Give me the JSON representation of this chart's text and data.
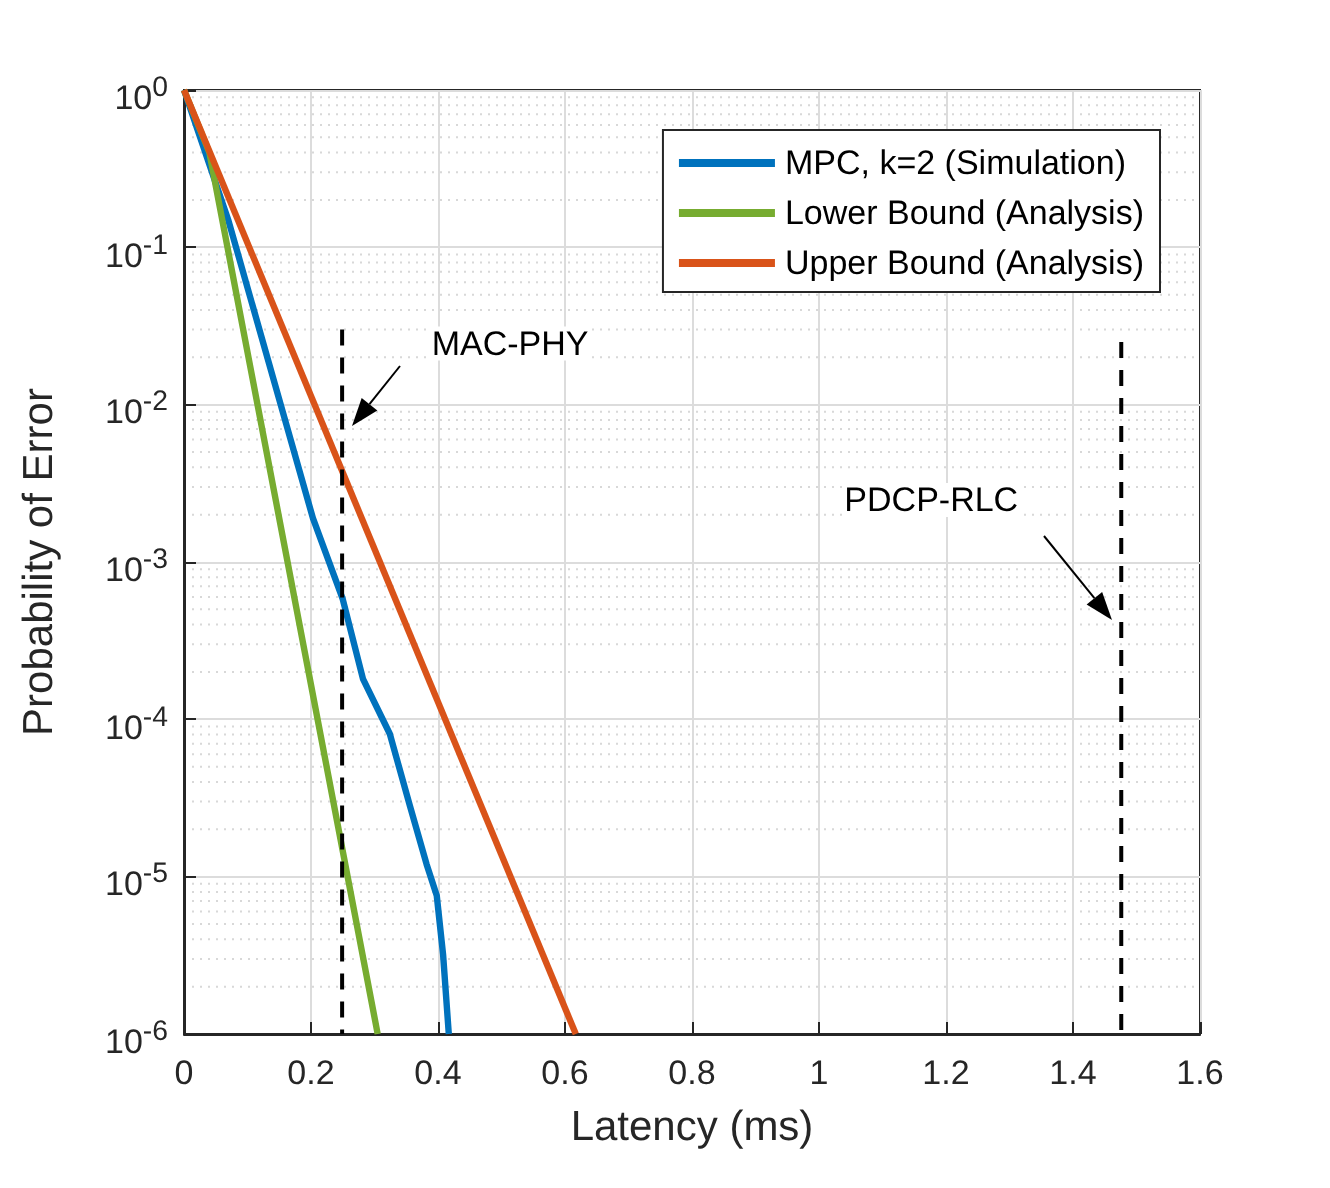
{
  "chart_data": {
    "type": "line",
    "xlabel": "Latency (ms)",
    "ylabel": "Probability of Error",
    "log": "y",
    "grid": true,
    "legend": "top right",
    "line_style": "solid",
    "marker": "none",
    "xlim": [
      0,
      1.6
    ],
    "xticks": [
      0,
      0.2,
      0.4,
      0.6,
      0.8,
      1,
      1.2,
      1.4,
      1.6
    ],
    "ylim": [
      1e-06,
      1
    ],
    "yticks": [
      {
        "value": 1e-06,
        "label": "10$^{-6}$"
      },
      {
        "value": 1e-05,
        "label": "10$^{-5}$"
      },
      {
        "value": 0.0001,
        "label": "10$^{-4}$"
      },
      {
        "value": 0.001,
        "label": "10$^{-3}$"
      },
      {
        "value": 0.01,
        "label": "10$^{-2}$"
      },
      {
        "value": 0.1,
        "label": "10$^{-1}$"
      },
      {
        "value": 1,
        "label": "10$^{0}$"
      }
    ],
    "series": [
      {
        "name": "MPC, k=2 (Simulation)",
        "color": "#0072bd",
        "x": [
          0,
          0.07,
          0.203,
          0.25,
          0.282,
          0.324,
          0.356,
          0.382,
          0.398,
          0.408,
          0.417
        ],
        "values": [
          1,
          0.148,
          0.0019,
          0.00058,
          0.00018,
          8.1e-05,
          2.8e-05,
          1.2e-05,
          7.6e-06,
          3.2e-06,
          1e-06
        ]
      },
      {
        "name": "Lower Bound (Analysis)",
        "color": "#77ac30",
        "x": [
          0,
          0.04,
          0.305
        ],
        "values": [
          1,
          0.4,
          1e-06
        ]
      },
      {
        "name": "Upper Bound (Analysis)",
        "color": "#d95319",
        "x": [
          0,
          0.617
        ],
        "values": [
          1,
          1e-06
        ]
      },
      {
        "color": "#000000",
        "line_style": "dashed",
        "x": [
          0.249,
          0.249
        ],
        "values": [
          0.03,
          1e-06
        ]
      },
      {
        "color": "#000000",
        "line_style": "dashed",
        "x": [
          1.476,
          1.476
        ],
        "values": [
          0.025,
          1e-06
        ]
      }
    ],
    "annotations": [
      "MAC-PHY",
      "PDCP-RLC"
    ]
  }
}
